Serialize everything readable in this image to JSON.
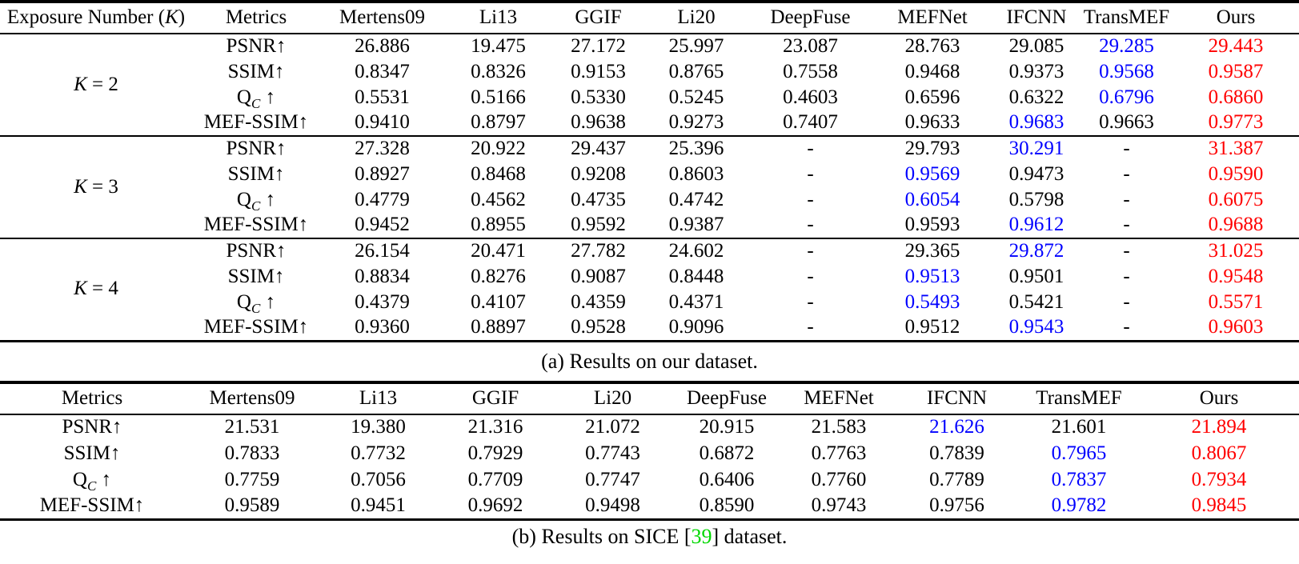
{
  "colors": {
    "best": "#ff0000",
    "second_best": "#0000ff",
    "citation": "#00d800",
    "text": "#000000",
    "rule": "#000000"
  },
  "table_a": {
    "caption": "(a) Results on our dataset.",
    "columns": [
      {
        "pre": "Exposure Number (",
        "var": "K",
        "post": ")"
      },
      "Metrics",
      "Mertens09",
      "Li13",
      "GGIF",
      "Li20",
      "DeepFuse",
      "MEFNet",
      "IFCNN",
      "TransMEF",
      "Ours"
    ],
    "groups": [
      {
        "label_var": "K",
        "label_rest": " = 2",
        "rows": [
          {
            "metric": {
              "name": "PSNR",
              "sub": "",
              "arrow": "↑"
            },
            "values": [
              "26.886",
              "19.475",
              "27.172",
              "25.997",
              "23.087",
              "28.763",
              "29.085",
              "29.285",
              "29.443"
            ],
            "blue": 7,
            "red": 8
          },
          {
            "metric": {
              "name": "SSIM",
              "sub": "",
              "arrow": "↑"
            },
            "values": [
              "0.8347",
              "0.8326",
              "0.9153",
              "0.8765",
              "0.7558",
              "0.9468",
              "0.9373",
              "0.9568",
              "0.9587"
            ],
            "blue": 7,
            "red": 8
          },
          {
            "metric": {
              "name": "Q",
              "sub": "C",
              "arrow": " ↑"
            },
            "values": [
              "0.5531",
              "0.5166",
              "0.5330",
              "0.5245",
              "0.4603",
              "0.6596",
              "0.6322",
              "0.6796",
              "0.6860"
            ],
            "blue": 7,
            "red": 8
          },
          {
            "metric": {
              "name": "MEF-SSIM",
              "sub": "",
              "arrow": "↑"
            },
            "values": [
              "0.9410",
              "0.8797",
              "0.9638",
              "0.9273",
              "0.7407",
              "0.9633",
              "0.9683",
              "0.9663",
              "0.9773"
            ],
            "blue": 6,
            "red": 8
          }
        ]
      },
      {
        "label_var": "K",
        "label_rest": " = 3",
        "rows": [
          {
            "metric": {
              "name": "PSNR",
              "sub": "",
              "arrow": "↑"
            },
            "values": [
              "27.328",
              "20.922",
              "29.437",
              "25.396",
              "-",
              "29.793",
              "30.291",
              "-",
              "31.387"
            ],
            "blue": 6,
            "red": 8
          },
          {
            "metric": {
              "name": "SSIM",
              "sub": "",
              "arrow": "↑"
            },
            "values": [
              "0.8927",
              "0.8468",
              "0.9208",
              "0.8603",
              "-",
              "0.9569",
              "0.9473",
              "-",
              "0.9590"
            ],
            "blue": 5,
            "red": 8
          },
          {
            "metric": {
              "name": "Q",
              "sub": "C",
              "arrow": " ↑"
            },
            "values": [
              "0.4779",
              "0.4562",
              "0.4735",
              "0.4742",
              "-",
              "0.6054",
              "0.5798",
              "-",
              "0.6075"
            ],
            "blue": 5,
            "red": 8
          },
          {
            "metric": {
              "name": "MEF-SSIM",
              "sub": "",
              "arrow": "↑"
            },
            "values": [
              "0.9452",
              "0.8955",
              "0.9592",
              "0.9387",
              "-",
              "0.9593",
              "0.9612",
              "-",
              "0.9688"
            ],
            "blue": 6,
            "red": 8
          }
        ]
      },
      {
        "label_var": "K",
        "label_rest": " = 4",
        "rows": [
          {
            "metric": {
              "name": "PSNR",
              "sub": "",
              "arrow": "↑"
            },
            "values": [
              "26.154",
              "20.471",
              "27.782",
              "24.602",
              "-",
              "29.365",
              "29.872",
              "-",
              "31.025"
            ],
            "blue": 6,
            "red": 8
          },
          {
            "metric": {
              "name": "SSIM",
              "sub": "",
              "arrow": "↑"
            },
            "values": [
              "0.8834",
              "0.8276",
              "0.9087",
              "0.8448",
              "-",
              "0.9513",
              "0.9501",
              "-",
              "0.9548"
            ],
            "blue": 5,
            "red": 8
          },
          {
            "metric": {
              "name": "Q",
              "sub": "C",
              "arrow": " ↑"
            },
            "values": [
              "0.4379",
              "0.4107",
              "0.4359",
              "0.4371",
              "-",
              "0.5493",
              "0.5421",
              "-",
              "0.5571"
            ],
            "blue": 5,
            "red": 8
          },
          {
            "metric": {
              "name": "MEF-SSIM",
              "sub": "",
              "arrow": "↑"
            },
            "values": [
              "0.9360",
              "0.8897",
              "0.9528",
              "0.9096",
              "-",
              "0.9512",
              "0.9543",
              "-",
              "0.9603"
            ],
            "blue": 6,
            "red": 8
          }
        ]
      }
    ]
  },
  "table_b": {
    "caption_pre": "(b) Results on SICE [",
    "caption_cite": "39",
    "caption_post": "] dataset.",
    "columns": [
      "Metrics",
      "Mertens09",
      "Li13",
      "GGIF",
      "Li20",
      "DeepFuse",
      "MEFNet",
      "IFCNN",
      "TransMEF",
      "Ours"
    ],
    "rows": [
      {
        "metric": {
          "name": "PSNR",
          "sub": "",
          "arrow": "↑"
        },
        "values": [
          "21.531",
          "19.380",
          "21.316",
          "21.072",
          "20.915",
          "21.583",
          "21.626",
          "21.601",
          "21.894"
        ],
        "blue": 6,
        "red": 8
      },
      {
        "metric": {
          "name": "SSIM",
          "sub": "",
          "arrow": "↑"
        },
        "values": [
          "0.7833",
          "0.7732",
          "0.7929",
          "0.7743",
          "0.6872",
          "0.7763",
          "0.7839",
          "0.7965",
          "0.8067"
        ],
        "blue": 7,
        "red": 8
      },
      {
        "metric": {
          "name": "Q",
          "sub": "C",
          "arrow": " ↑"
        },
        "values": [
          "0.7759",
          "0.7056",
          "0.7709",
          "0.7747",
          "0.6406",
          "0.7760",
          "0.7789",
          "0.7837",
          "0.7934"
        ],
        "blue": 7,
        "red": 8
      },
      {
        "metric": {
          "name": "MEF-SSIM",
          "sub": "",
          "arrow": "↑"
        },
        "values": [
          "0.9589",
          "0.9451",
          "0.9692",
          "0.9498",
          "0.8590",
          "0.9743",
          "0.9756",
          "0.9782",
          "0.9845"
        ],
        "blue": 7,
        "red": 8
      }
    ]
  }
}
